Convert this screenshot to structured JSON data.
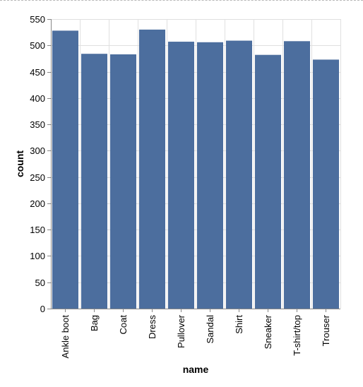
{
  "chart_data": {
    "type": "bar",
    "title": "",
    "xlabel": "name",
    "ylabel": "count",
    "categories": [
      "Ankle boot",
      "Bag",
      "Coat",
      "Dress",
      "Pullover",
      "Sandal",
      "Shirt",
      "Sneaker",
      "T-shirt/top",
      "Trouser"
    ],
    "values": [
      528,
      484,
      483,
      530,
      507,
      506,
      509,
      482,
      508,
      473
    ],
    "ylim": [
      0,
      550
    ],
    "yticks": [
      0,
      50,
      100,
      150,
      200,
      250,
      300,
      350,
      400,
      450,
      500,
      550
    ],
    "grid": true,
    "color": "#4c6e9e"
  }
}
